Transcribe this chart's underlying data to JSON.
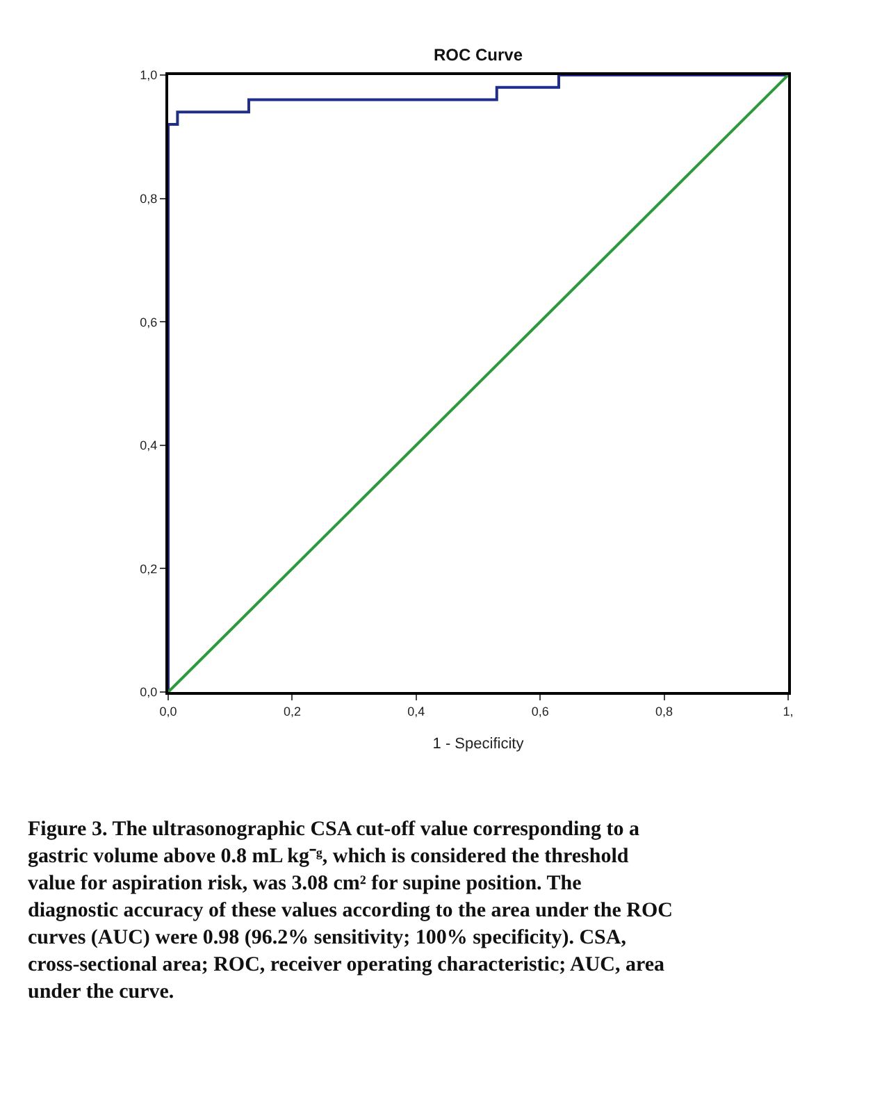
{
  "chart_data": {
    "type": "line",
    "title": "ROC Curve",
    "xlabel": "1 - Specificity",
    "xlim": [
      0,
      1
    ],
    "ylim": [
      0,
      1
    ],
    "xticks": [
      {
        "value": 0,
        "label": "0,0"
      },
      {
        "value": 0.2,
        "label": "0,2"
      },
      {
        "value": 0.4,
        "label": "0,4"
      },
      {
        "value": 0.6,
        "label": "0,6"
      },
      {
        "value": 0.8,
        "label": "0,8"
      },
      {
        "value": 1,
        "label": "1,"
      }
    ],
    "yticks": [
      {
        "value": 0,
        "label": "0,0"
      },
      {
        "value": 0.2,
        "label": "0,2"
      },
      {
        "value": 0.4,
        "label": "0,4"
      },
      {
        "value": 0.6,
        "label": "0,6"
      },
      {
        "value": 0.8,
        "label": "0,8"
      },
      {
        "value": 1,
        "label": "1,0"
      }
    ],
    "marker": "none",
    "line_style": "solid",
    "series": [
      {
        "type": "step",
        "color": "#1f2d8c",
        "x": [
          0,
          0,
          0.015,
          0.13,
          0.53,
          0.63,
          1
        ],
        "values": [
          0,
          0.92,
          0.94,
          0.96,
          0.98,
          1,
          1
        ]
      },
      {
        "color": "#2a9a3a",
        "x": [
          0,
          1
        ],
        "values": [
          0,
          1
        ]
      }
    ],
    "annotations": [
      "Figure 3. The ultrasonographic CSA cut-off value corresponding to a gastric volume above 0.8 mL kg⁻ᵍ, which is considered the threshold value for aspiration risk, was 3.08 cm² for supine position. The diagnostic accuracy of these values according to the area under the ROC curves (AUC) were 0.98 (96.2% sensitivity; 100% specificity). CSA, cross-sectional area; ROC, receiver operating characteristic; AUC, area under the curve."
    ]
  }
}
